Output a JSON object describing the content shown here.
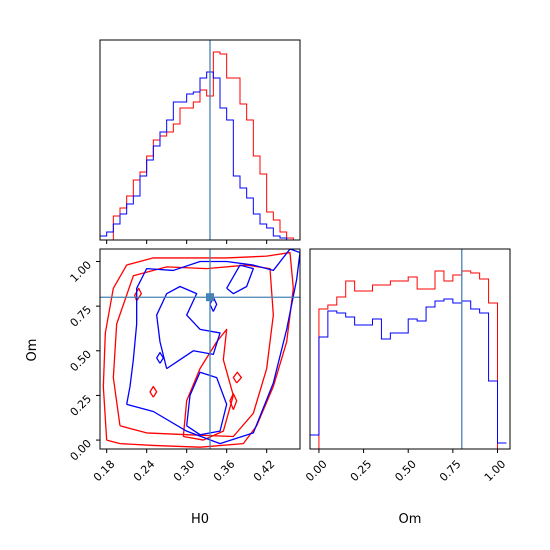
{
  "chart_data": {
    "type": "corner",
    "parameters": [
      "H0",
      "Om"
    ],
    "truth": {
      "H0": 0.335,
      "Om": 0.8
    },
    "truth_color": "#4682b4",
    "series_colors": [
      "#ff0000",
      "#0000ff"
    ],
    "xlabel_h0": "H0",
    "xlabel_om": "Om",
    "ylabel_om": "Om",
    "h0_range": [
      0.17,
      0.47
    ],
    "om_range": [
      -0.05,
      1.07
    ],
    "h0_ticks": [
      "0.18",
      "0.24",
      "0.30",
      "0.36",
      "0.42"
    ],
    "om_ticks": [
      "0.00",
      "0.25",
      "0.50",
      "0.75",
      "1.00"
    ],
    "h0_bin_edges": [
      0.17,
      0.18,
      0.19,
      0.2,
      0.21,
      0.22,
      0.23,
      0.24,
      0.25,
      0.26,
      0.27,
      0.28,
      0.29,
      0.3,
      0.31,
      0.32,
      0.33,
      0.34,
      0.35,
      0.36,
      0.37,
      0.38,
      0.39,
      0.4,
      0.41,
      0.42,
      0.43,
      0.44,
      0.45,
      0.46,
      0.47
    ],
    "h0_hist": [
      {
        "values": [
          0,
          0,
          0.12,
          0.16,
          0.22,
          0.3,
          0.34,
          0.42,
          0.5,
          0.52,
          0.54,
          0.58,
          0.66,
          0.66,
          0.69,
          0.75,
          0.72,
          0.94,
          0.93,
          0.81,
          0.81,
          0.68,
          0.6,
          0.42,
          0.33,
          0.14,
          0.1,
          0.04,
          0.01,
          0
        ]
      },
      {
        "values": [
          0.02,
          0.04,
          0.08,
          0.13,
          0.18,
          0.22,
          0.32,
          0.4,
          0.47,
          0.54,
          0.6,
          0.69,
          0.69,
          0.73,
          0.74,
          0.81,
          0.84,
          0.81,
          0.66,
          0.6,
          0.32,
          0.26,
          0.21,
          0.13,
          0.08,
          0.06,
          0.02,
          0.01,
          0,
          0
        ]
      }
    ],
    "om_bin_edges": [
      -0.05,
      0.0,
      0.05,
      0.1,
      0.15,
      0.2,
      0.25,
      0.3,
      0.35,
      0.4,
      0.45,
      0.5,
      0.55,
      0.6,
      0.65,
      0.7,
      0.75,
      0.8,
      0.85,
      0.9,
      0.95,
      1.0,
      1.05
    ],
    "om_hist": [
      {
        "values": [
          0,
          0.7,
          0.72,
          0.76,
          0.84,
          0.79,
          0.79,
          0.82,
          0.82,
          0.84,
          0.84,
          0.86,
          0.8,
          0.8,
          0.89,
          0.84,
          0.87,
          0.89,
          0.88,
          0.85,
          0.73,
          0
        ]
      },
      {
        "values": [
          0.07,
          0.56,
          0.69,
          0.68,
          0.66,
          0.62,
          0.62,
          0.65,
          0.55,
          0.58,
          0.58,
          0.65,
          0.64,
          0.71,
          0.74,
          0.75,
          0.73,
          0.74,
          0.7,
          0.68,
          0.34,
          0.03
        ]
      }
    ],
    "hist_ylim": [
      0,
      1.0
    ],
    "contours": [
      {
        "series": 0,
        "points": [
          [
            0.18,
            0.0
          ],
          [
            0.175,
            0.3
          ],
          [
            0.178,
            0.6
          ],
          [
            0.19,
            0.85
          ],
          [
            0.21,
            0.98
          ],
          [
            0.25,
            1.02
          ],
          [
            0.3,
            1.02
          ],
          [
            0.36,
            1.02
          ],
          [
            0.42,
            1.03
          ],
          [
            0.455,
            1.05
          ],
          [
            0.46,
            0.85
          ],
          [
            0.45,
            0.55
          ],
          [
            0.43,
            0.3
          ],
          [
            0.405,
            0.08
          ],
          [
            0.385,
            -0.02
          ],
          [
            0.32,
            -0.04
          ],
          [
            0.25,
            -0.03
          ],
          [
            0.2,
            -0.02
          ],
          [
            0.18,
            0.0
          ]
        ]
      },
      {
        "series": 0,
        "points": [
          [
            0.2,
            0.08
          ],
          [
            0.19,
            0.35
          ],
          [
            0.195,
            0.65
          ],
          [
            0.22,
            0.92
          ],
          [
            0.27,
            0.97
          ],
          [
            0.33,
            0.96
          ],
          [
            0.39,
            0.98
          ],
          [
            0.425,
            0.96
          ],
          [
            0.43,
            0.7
          ],
          [
            0.42,
            0.4
          ],
          [
            0.4,
            0.15
          ],
          [
            0.37,
            0.02
          ],
          [
            0.3,
            0.03
          ],
          [
            0.24,
            0.04
          ],
          [
            0.2,
            0.08
          ]
        ]
      },
      {
        "series": 0,
        "points": [
          [
            0.295,
            0.02
          ],
          [
            0.3,
            0.22
          ],
          [
            0.32,
            0.4
          ],
          [
            0.345,
            0.55
          ],
          [
            0.36,
            0.62
          ],
          [
            0.355,
            0.45
          ],
          [
            0.37,
            0.25
          ],
          [
            0.355,
            0.05
          ],
          [
            0.325,
            0.0
          ],
          [
            0.295,
            0.02
          ]
        ]
      },
      {
        "series": 0,
        "points": [
          [
            0.225,
            0.78
          ],
          [
            0.232,
            0.82
          ],
          [
            0.228,
            0.85
          ],
          [
            0.222,
            0.81
          ],
          [
            0.225,
            0.78
          ]
        ]
      },
      {
        "series": 0,
        "points": [
          [
            0.37,
            0.17
          ],
          [
            0.375,
            0.22
          ],
          [
            0.37,
            0.26
          ],
          [
            0.365,
            0.22
          ],
          [
            0.37,
            0.17
          ]
        ]
      },
      {
        "series": 0,
        "points": [
          [
            0.25,
            0.24
          ],
          [
            0.255,
            0.27
          ],
          [
            0.25,
            0.3
          ],
          [
            0.245,
            0.27
          ],
          [
            0.25,
            0.24
          ]
        ]
      },
      {
        "series": 0,
        "points": [
          [
            0.375,
            0.32
          ],
          [
            0.382,
            0.35
          ],
          [
            0.376,
            0.38
          ],
          [
            0.37,
            0.35
          ],
          [
            0.375,
            0.32
          ]
        ]
      },
      {
        "series": 1,
        "points": [
          [
            0.21,
            0.2
          ],
          [
            0.25,
            0.16
          ],
          [
            0.3,
            0.05
          ],
          [
            0.35,
            -0.02
          ],
          [
            0.4,
            0.04
          ],
          [
            0.43,
            0.32
          ],
          [
            0.45,
            0.62
          ],
          [
            0.465,
            0.9
          ],
          [
            0.47,
            1.05
          ],
          [
            0.455,
            1.07
          ],
          [
            0.43,
            0.95
          ],
          [
            0.4,
            0.98
          ],
          [
            0.36,
            1.0
          ],
          [
            0.32,
            1.0
          ],
          [
            0.28,
            0.95
          ],
          [
            0.24,
            0.96
          ],
          [
            0.225,
            0.85
          ],
          [
            0.225,
            0.65
          ],
          [
            0.22,
            0.45
          ],
          [
            0.215,
            0.3
          ],
          [
            0.21,
            0.2
          ]
        ]
      },
      {
        "series": 1,
        "points": [
          [
            0.27,
            0.4
          ],
          [
            0.26,
            0.55
          ],
          [
            0.255,
            0.7
          ],
          [
            0.27,
            0.82
          ],
          [
            0.29,
            0.86
          ],
          [
            0.315,
            0.82
          ],
          [
            0.3,
            0.7
          ],
          [
            0.32,
            0.62
          ],
          [
            0.35,
            0.6
          ],
          [
            0.34,
            0.48
          ],
          [
            0.31,
            0.5
          ],
          [
            0.29,
            0.45
          ],
          [
            0.27,
            0.4
          ]
        ]
      },
      {
        "series": 1,
        "points": [
          [
            0.3,
            0.08
          ],
          [
            0.305,
            0.25
          ],
          [
            0.32,
            0.38
          ],
          [
            0.345,
            0.35
          ],
          [
            0.36,
            0.2
          ],
          [
            0.35,
            0.05
          ],
          [
            0.32,
            0.03
          ],
          [
            0.3,
            0.08
          ]
        ]
      },
      {
        "series": 1,
        "points": [
          [
            0.36,
            0.85
          ],
          [
            0.38,
            0.98
          ],
          [
            0.4,
            0.96
          ],
          [
            0.39,
            0.86
          ],
          [
            0.37,
            0.82
          ],
          [
            0.36,
            0.85
          ]
        ]
      },
      {
        "series": 1,
        "points": [
          [
            0.34,
            0.72
          ],
          [
            0.345,
            0.76
          ],
          [
            0.34,
            0.8
          ],
          [
            0.335,
            0.76
          ],
          [
            0.34,
            0.72
          ]
        ]
      },
      {
        "series": 1,
        "points": [
          [
            0.26,
            0.43
          ],
          [
            0.265,
            0.46
          ],
          [
            0.26,
            0.49
          ],
          [
            0.255,
            0.46
          ],
          [
            0.26,
            0.43
          ]
        ]
      }
    ]
  }
}
